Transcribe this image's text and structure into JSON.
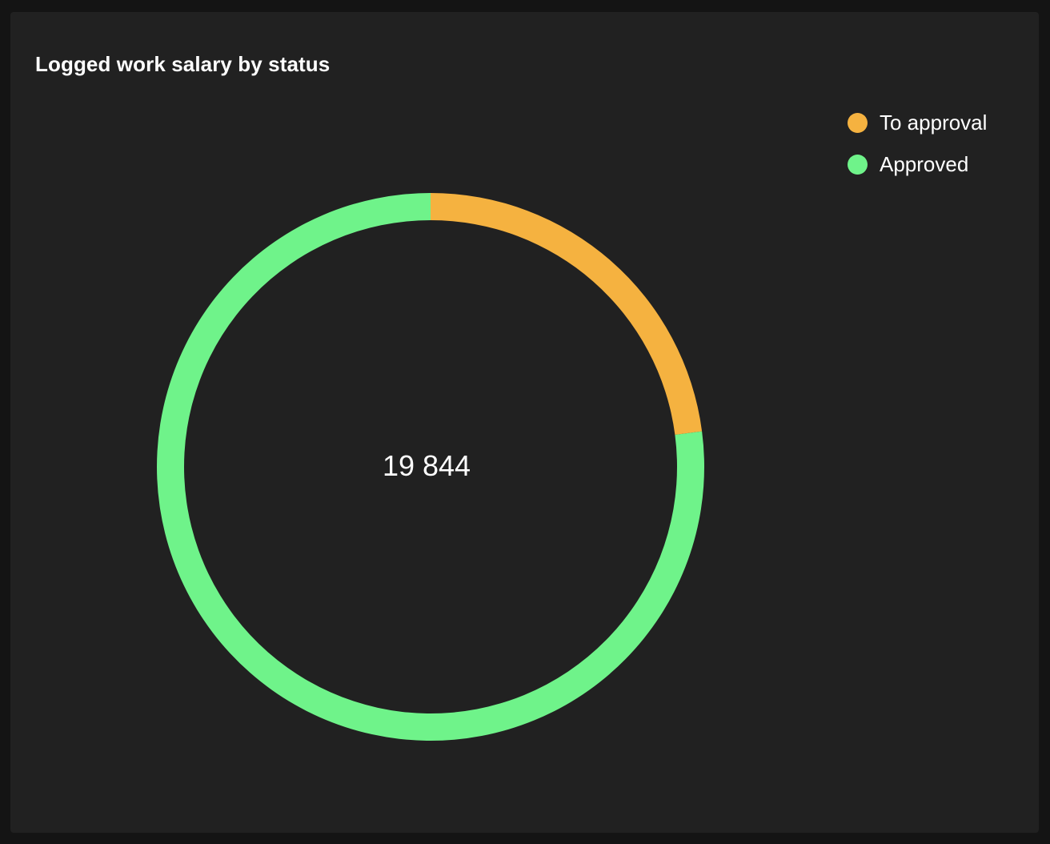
{
  "panel": {
    "title": "Logged work salary by status"
  },
  "colors": {
    "background": "#212121",
    "to_approval": "#f5b240",
    "approved": "#6ff38a"
  },
  "chart_data": {
    "type": "pie",
    "style": "donut",
    "title": "Logged work salary by status",
    "total_label": "19 844",
    "categories": [
      "To approval",
      "Approved"
    ],
    "values": [
      4550,
      15294
    ],
    "series": [
      {
        "name": "To approval",
        "value": 4550,
        "color": "#f5b240"
      },
      {
        "name": "Approved",
        "value": 15294,
        "color": "#6ff38a"
      }
    ],
    "legend_position": "top-right",
    "start_angle": "12 o'clock, clockwise"
  },
  "legend": {
    "items": [
      {
        "label": "To approval",
        "color": "#f5b240"
      },
      {
        "label": "Approved",
        "color": "#6ff38a"
      }
    ]
  }
}
